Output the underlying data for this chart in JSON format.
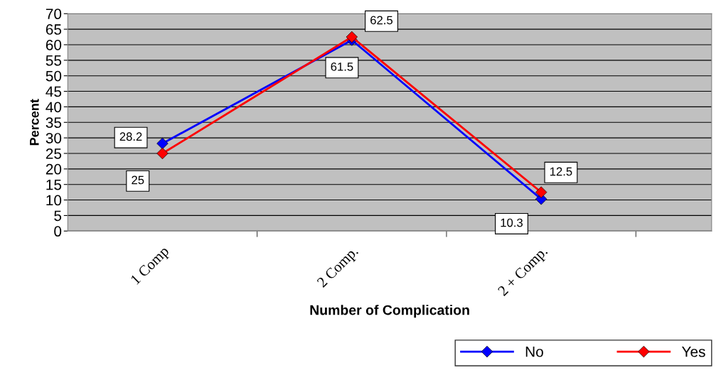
{
  "chart_data": {
    "type": "line",
    "xlabel": "Number of Complication",
    "ylabel": "Percent",
    "categories": [
      "1 Comp",
      "2 Comp.",
      "2 + Comp."
    ],
    "series": [
      {
        "name": "No",
        "color": "#0000ff",
        "values": [
          28.2,
          61.5,
          10.3
        ]
      },
      {
        "name": "Yes",
        "color": "#ff0000",
        "values": [
          25,
          62.5,
          12.5
        ]
      }
    ],
    "ylim": [
      0,
      70
    ],
    "yticks": [
      0,
      5,
      10,
      15,
      20,
      25,
      30,
      35,
      40,
      45,
      50,
      55,
      60,
      65,
      70
    ],
    "grid": "y",
    "legend": "bottom right",
    "marker": "diamond",
    "line_style": "solid",
    "data_labels": true
  }
}
